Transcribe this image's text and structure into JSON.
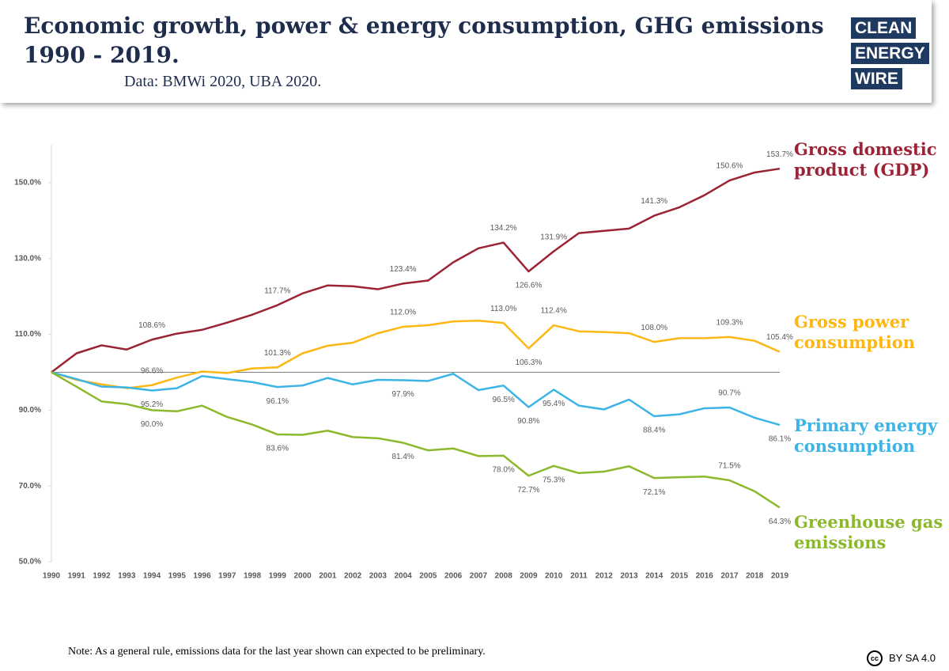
{
  "chart_data": {
    "type": "line",
    "title": "Economic growth, power & energy consumption, GHG emissions 1990 - 2019.",
    "subtitle": "Data: BMWi 2020, UBA 2020.",
    "logo": [
      "CLEAN",
      "ENERGY",
      "WIRE"
    ],
    "note": "Note: As a general rule, emissions data for the last year shown can expected to be preliminary.",
    "license": "BY SA 4.0",
    "x": [
      1990,
      1991,
      1992,
      1993,
      1994,
      1995,
      1996,
      1997,
      1998,
      1999,
      2000,
      2001,
      2002,
      2003,
      2004,
      2005,
      2006,
      2007,
      2008,
      2009,
      2010,
      2011,
      2012,
      2013,
      2014,
      2015,
      2016,
      2017,
      2018,
      2019
    ],
    "xlim": [
      1990,
      2019
    ],
    "ylim": [
      50,
      160
    ],
    "yticks": [
      {
        "value": 50,
        "label": "50.0%"
      },
      {
        "value": 70,
        "label": "70.0%"
      },
      {
        "value": 90,
        "label": "90.0%"
      },
      {
        "value": 110,
        "label": "110.0%"
      },
      {
        "value": 130,
        "label": "130.0%"
      },
      {
        "value": 150,
        "label": "150.0%"
      }
    ],
    "reference_line": 100,
    "series": [
      {
        "name": "Gross domestic product (GDP)",
        "color": "#9b2335",
        "values": [
          100,
          105.0,
          107.1,
          106.0,
          108.6,
          110.2,
          111.2,
          113.1,
          115.2,
          117.7,
          120.8,
          122.9,
          122.7,
          121.9,
          123.4,
          124.2,
          129.0,
          132.7,
          134.2,
          126.6,
          131.9,
          136.7,
          137.3,
          137.9,
          141.3,
          143.5,
          146.7,
          150.6,
          152.7,
          153.7
        ],
        "value_labels": [
          null,
          null,
          null,
          null,
          "108.6%",
          null,
          null,
          null,
          null,
          "117.7%",
          null,
          null,
          null,
          null,
          "123.4%",
          null,
          null,
          null,
          "134.2%",
          "126.6%",
          "131.9%",
          null,
          null,
          null,
          "141.3%",
          null,
          null,
          "150.6%",
          null,
          "153.7%"
        ]
      },
      {
        "name": "Gross power consumption",
        "color": "#fdb714",
        "values": [
          100,
          98.0,
          96.8,
          95.8,
          96.6,
          98.6,
          100.2,
          99.8,
          101.0,
          101.3,
          105.0,
          107.0,
          107.8,
          110.3,
          112.0,
          112.4,
          113.4,
          113.6,
          113.0,
          106.3,
          112.4,
          110.8,
          110.6,
          110.3,
          108.0,
          109.0,
          109.0,
          109.3,
          108.3,
          105.4
        ],
        "value_labels": [
          null,
          null,
          null,
          null,
          "96.6%",
          null,
          null,
          null,
          null,
          "101.3%",
          null,
          null,
          null,
          null,
          "112.0%",
          null,
          null,
          null,
          "113.0%",
          "106.3%",
          "112.4%",
          null,
          null,
          null,
          "108.0%",
          null,
          null,
          "109.3%",
          null,
          "105.4%"
        ]
      },
      {
        "name": "Primary energy consumption",
        "color": "#3cb4e5",
        "values": [
          100,
          98.2,
          96.2,
          96.0,
          95.2,
          95.8,
          99.0,
          98.2,
          97.4,
          96.1,
          96.5,
          98.5,
          96.8,
          98.0,
          97.9,
          97.7,
          99.6,
          95.3,
          96.5,
          90.8,
          95.4,
          91.2,
          90.2,
          92.8,
          88.4,
          88.9,
          90.5,
          90.7,
          88.0,
          86.1
        ],
        "value_labels": [
          null,
          null,
          null,
          null,
          "95.2%",
          null,
          null,
          null,
          null,
          "96.1%",
          null,
          null,
          null,
          null,
          "97.9%",
          null,
          null,
          null,
          "96.5%",
          "90.8%",
          "95.4%",
          null,
          null,
          null,
          "88.4%",
          null,
          null,
          "90.7%",
          null,
          "86.1%"
        ]
      },
      {
        "name": "Greenhouse gas emissions",
        "color": "#8cb92b",
        "values": [
          100,
          96.2,
          92.3,
          91.6,
          90.0,
          89.7,
          91.2,
          88.2,
          86.2,
          83.6,
          83.5,
          84.6,
          82.9,
          82.6,
          81.4,
          79.4,
          79.9,
          77.9,
          78.0,
          72.7,
          75.3,
          73.4,
          73.8,
          75.2,
          72.1,
          72.3,
          72.5,
          71.5,
          68.6,
          64.3
        ],
        "value_labels": [
          null,
          null,
          null,
          null,
          "90.0%",
          null,
          null,
          null,
          null,
          "83.6%",
          null,
          null,
          null,
          null,
          "81.4%",
          null,
          null,
          null,
          "78.0%",
          "72.7%",
          "75.3%",
          null,
          null,
          null,
          "72.1%",
          null,
          null,
          "71.5%",
          null,
          "64.3%"
        ]
      }
    ]
  }
}
